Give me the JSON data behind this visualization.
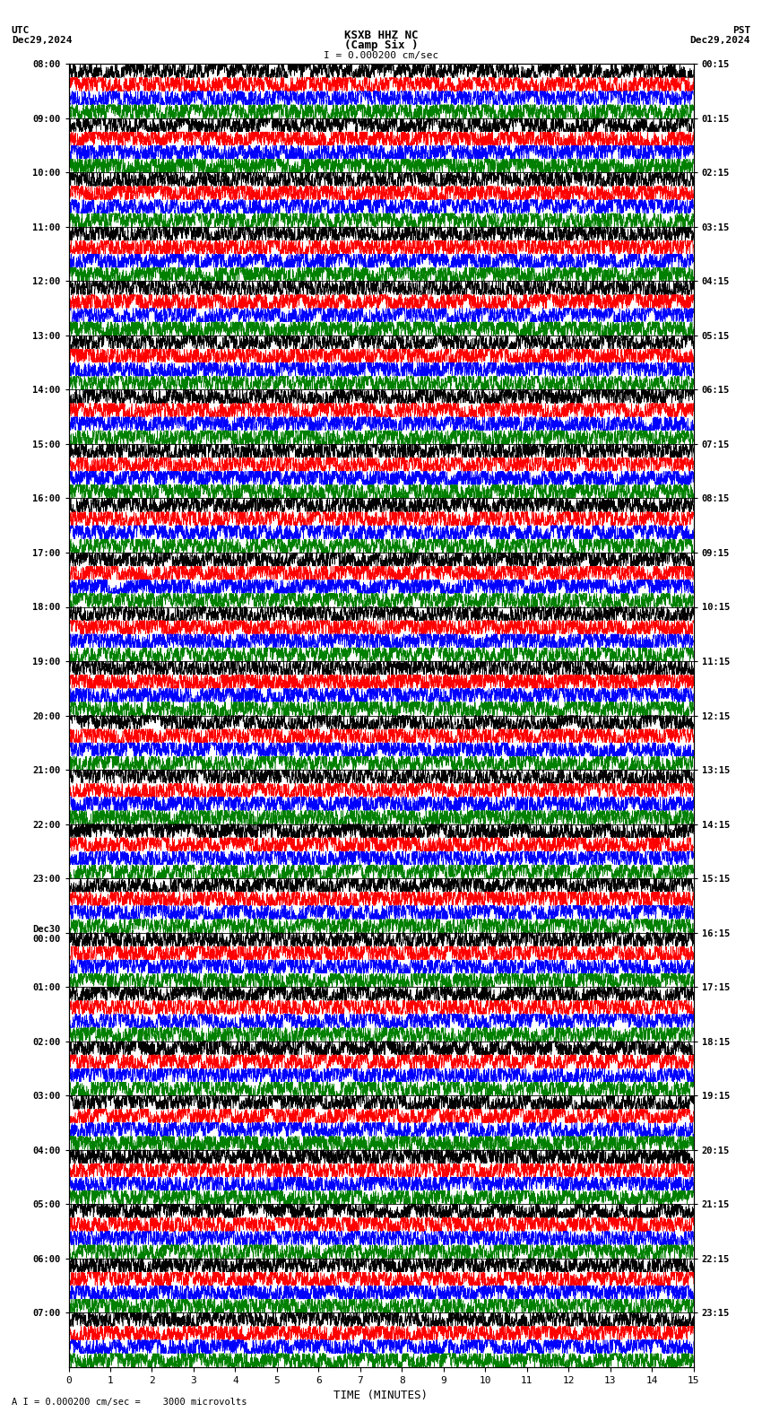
{
  "title_line1": "KSXB HHZ NC",
  "title_line2": "(Camp Six )",
  "scale_label": "I = 0.000200 cm/sec",
  "left_timezone": "UTC",
  "left_date": "Dec29,2024",
  "right_timezone": "PST",
  "right_date": "Dec29,2024",
  "bottom_label": "TIME (MINUTES)",
  "bottom_note": "A I = 0.000200 cm/sec =    3000 microvolts",
  "xmin": 0,
  "xmax": 15,
  "xticks": [
    0,
    1,
    2,
    3,
    4,
    5,
    6,
    7,
    8,
    9,
    10,
    11,
    12,
    13,
    14,
    15
  ],
  "left_times": [
    "08:00",
    "09:00",
    "10:00",
    "11:00",
    "12:00",
    "13:00",
    "14:00",
    "15:00",
    "16:00",
    "17:00",
    "18:00",
    "19:00",
    "20:00",
    "21:00",
    "22:00",
    "23:00",
    "Dec30\n00:00",
    "01:00",
    "02:00",
    "03:00",
    "04:00",
    "05:00",
    "06:00",
    "07:00"
  ],
  "right_times": [
    "00:15",
    "01:15",
    "02:15",
    "03:15",
    "04:15",
    "05:15",
    "06:15",
    "07:15",
    "08:15",
    "09:15",
    "10:15",
    "11:15",
    "12:15",
    "13:15",
    "14:15",
    "15:15",
    "16:15",
    "17:15",
    "18:15",
    "19:15",
    "20:15",
    "21:15",
    "22:15",
    "23:15"
  ],
  "n_rows": 24,
  "traces_per_row": 4,
  "trace_colors": [
    "black",
    "red",
    "blue",
    "green"
  ],
  "bg_color": "white",
  "noise_seed": 42
}
